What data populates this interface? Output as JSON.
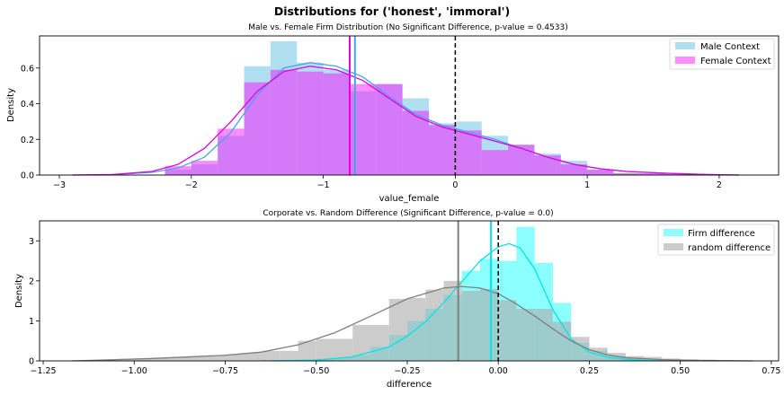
{
  "figure_title": "Distributions for ('honest', 'immoral')",
  "chart_data": [
    {
      "type": "histogram+kde",
      "title": "Male vs. Female Firm Distribution (No Significant Difference, p-value = 0.4533)",
      "xlabel": "value_female",
      "ylabel": "Density",
      "xlim": [
        -3.15,
        2.45
      ],
      "ylim": [
        0,
        0.78
      ],
      "xticks": [
        -3,
        -2,
        -1,
        0,
        1,
        2
      ],
      "xtick_labels": [
        "−3",
        "−2",
        "−1",
        "0",
        "1",
        "2"
      ],
      "yticks": [
        0,
        0.2,
        0.4,
        0.6
      ],
      "ytick_labels": [
        "0.0",
        "0.2",
        "0.4",
        "0.6"
      ],
      "legend_position": "top-right",
      "grid": false,
      "bin_edges": [
        -2.2,
        -2.0,
        -1.8,
        -1.6,
        -1.4,
        -1.2,
        -1.0,
        -0.8,
        -0.6,
        -0.4,
        -0.2,
        0.0,
        0.2,
        0.4,
        0.6,
        0.8,
        1.0,
        1.2,
        1.4,
        1.6,
        1.8
      ],
      "reference_line": {
        "x": 0,
        "style": "dashed",
        "color": "#000000"
      },
      "series": [
        {
          "name": "Male Context",
          "color": "#87ceeb",
          "line_color": "#4aa3e8",
          "hist": [
            0.03,
            0.06,
            0.22,
            0.61,
            0.75,
            0.63,
            0.59,
            0.47,
            0.51,
            0.43,
            0.29,
            0.3,
            0.22,
            0.17,
            0.12,
            0.08,
            0.03,
            0.01,
            0.01,
            0.005
          ],
          "mean": -0.76,
          "kde_x": [
            -2.9,
            -2.6,
            -2.3,
            -2.1,
            -1.9,
            -1.7,
            -1.5,
            -1.3,
            -1.1,
            -0.9,
            -0.7,
            -0.5,
            -0.3,
            -0.1,
            0.1,
            0.3,
            0.5,
            0.7,
            0.9,
            1.1,
            1.3,
            1.6,
            1.9,
            2.15
          ],
          "kde_y": [
            0.0,
            0.002,
            0.015,
            0.04,
            0.1,
            0.24,
            0.45,
            0.6,
            0.63,
            0.61,
            0.55,
            0.44,
            0.34,
            0.28,
            0.24,
            0.2,
            0.15,
            0.1,
            0.06,
            0.035,
            0.02,
            0.01,
            0.003,
            0.0
          ]
        },
        {
          "name": "Female Context",
          "color": "#ff00ff",
          "line_color": "#e000e0",
          "hist": [
            0.05,
            0.08,
            0.26,
            0.52,
            0.59,
            0.58,
            0.57,
            0.51,
            0.51,
            0.36,
            0.28,
            0.25,
            0.14,
            0.17,
            0.11,
            0.06,
            0.03,
            0.01,
            0.01,
            0.005
          ],
          "mean": -0.8,
          "kde_x": [
            -2.9,
            -2.6,
            -2.3,
            -2.1,
            -1.9,
            -1.7,
            -1.5,
            -1.3,
            -1.1,
            -0.9,
            -0.7,
            -0.5,
            -0.3,
            -0.1,
            0.1,
            0.3,
            0.5,
            0.7,
            0.9,
            1.1,
            1.3,
            1.6,
            1.9,
            2.15
          ],
          "kde_y": [
            0.0,
            0.003,
            0.02,
            0.06,
            0.15,
            0.3,
            0.47,
            0.58,
            0.61,
            0.59,
            0.53,
            0.43,
            0.33,
            0.27,
            0.23,
            0.19,
            0.15,
            0.1,
            0.06,
            0.035,
            0.02,
            0.01,
            0.003,
            0.0
          ]
        }
      ]
    },
    {
      "type": "histogram+kde",
      "title": "Corporate vs. Random Difference (Significant Difference, p-value = 0.0)",
      "xlabel": "difference",
      "ylabel": "Density",
      "xlim": [
        -1.26,
        0.77
      ],
      "ylim": [
        0,
        3.5
      ],
      "xticks": [
        -1.25,
        -1.0,
        -0.75,
        -0.5,
        -0.25,
        0.0,
        0.25,
        0.5,
        0.75
      ],
      "xtick_labels": [
        "−1.25",
        "−1.00",
        "−0.75",
        "−0.50",
        "−0.25",
        "0.00",
        "0.25",
        "0.50",
        "0.75"
      ],
      "yticks": [
        0,
        1,
        2,
        3
      ],
      "ytick_labels": [
        "0",
        "1",
        "2",
        "3"
      ],
      "legend_position": "top-right",
      "grid": false,
      "reference_line": {
        "x": 0,
        "style": "dashed",
        "color": "#000000"
      },
      "series": [
        {
          "name": "Firm difference",
          "color": "#00ffff",
          "line_color": "#00e5e5",
          "bin_edges": [
            -0.65,
            -0.6,
            -0.55,
            -0.5,
            -0.45,
            -0.4,
            -0.35,
            -0.3,
            -0.25,
            -0.2,
            -0.15,
            -0.1,
            -0.05,
            0.0,
            0.05,
            0.1,
            0.15,
            0.2,
            0.25,
            0.3,
            0.35,
            0.4,
            0.45
          ],
          "hist": [
            0.02,
            0.02,
            0.03,
            0.05,
            0.08,
            0.15,
            0.35,
            0.65,
            1.0,
            1.3,
            1.65,
            2.25,
            2.55,
            2.5,
            3.35,
            2.45,
            1.45,
            0.45,
            0.25,
            0.12,
            0.06,
            0.03
          ],
          "mean": -0.02,
          "kde_x": [
            -0.62,
            -0.5,
            -0.4,
            -0.3,
            -0.25,
            -0.2,
            -0.15,
            -0.1,
            -0.05,
            0.0,
            0.03,
            0.06,
            0.1,
            0.15,
            0.2,
            0.25,
            0.3,
            0.35,
            0.4,
            0.45
          ],
          "kde_y": [
            0.0,
            0.02,
            0.1,
            0.35,
            0.62,
            0.98,
            1.45,
            1.98,
            2.5,
            2.85,
            2.93,
            2.82,
            2.3,
            1.28,
            0.55,
            0.22,
            0.09,
            0.04,
            0.015,
            0.0
          ]
        },
        {
          "name": "random difference",
          "color": "#aaaaaa",
          "line_color": "#7f7f7f",
          "bin_edges": [
            -1.15,
            -1.1,
            -1.05,
            -1.0,
            -0.95,
            -0.9,
            -0.85,
            -0.8,
            -0.75,
            -0.7,
            -0.65,
            -0.6,
            -0.55,
            -0.5,
            -0.45,
            -0.4,
            -0.35,
            -0.3,
            -0.25,
            -0.2,
            -0.15,
            -0.1,
            -0.05,
            0.0,
            0.05,
            0.1,
            0.15,
            0.2,
            0.25,
            0.3,
            0.35,
            0.4,
            0.45,
            0.5,
            0.55,
            0.6,
            0.65,
            0.7
          ],
          "hist": [
            0.02,
            0.03,
            0.05,
            0.06,
            0.08,
            0.1,
            0.12,
            0.14,
            0.16,
            0.2,
            0.25,
            0.25,
            0.5,
            0.55,
            0.55,
            0.9,
            0.9,
            1.55,
            1.57,
            1.78,
            2.0,
            1.75,
            1.8,
            1.52,
            1.3,
            1.3,
            0.98,
            0.6,
            0.33,
            0.2,
            0.12,
            0.1,
            0.06,
            0.04,
            0.03,
            0.02,
            0.01
          ],
          "mean": -0.11,
          "kde_x": [
            -1.17,
            -1.05,
            -0.95,
            -0.85,
            -0.75,
            -0.65,
            -0.55,
            -0.45,
            -0.35,
            -0.25,
            -0.15,
            -0.1,
            -0.05,
            0.0,
            0.05,
            0.1,
            0.15,
            0.2,
            0.25,
            0.3,
            0.35,
            0.45,
            0.55,
            0.7
          ],
          "kde_y": [
            0.0,
            0.03,
            0.06,
            0.1,
            0.14,
            0.22,
            0.4,
            0.7,
            1.12,
            1.55,
            1.82,
            1.86,
            1.82,
            1.68,
            1.42,
            1.12,
            0.8,
            0.5,
            0.28,
            0.15,
            0.08,
            0.03,
            0.01,
            0.0
          ]
        }
      ]
    }
  ]
}
